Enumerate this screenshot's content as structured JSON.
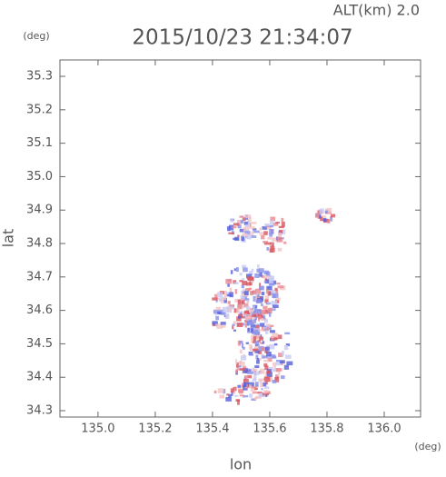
{
  "chart_data": {
    "type": "raster",
    "altitude_label": "ALT(km) 2.0",
    "title": "2015/10/23 21:34:07",
    "y_unit": "(deg)",
    "x_unit": "(deg)",
    "ylabel": "lat",
    "xlabel": "lon",
    "xlim": [
      134.867,
      136.127
    ],
    "ylim": [
      34.281,
      35.349
    ],
    "xticks": [
      {
        "value": 135.0,
        "label": "135.0"
      },
      {
        "value": 135.2,
        "label": "135.2"
      },
      {
        "value": 135.4,
        "label": "135.4"
      },
      {
        "value": 135.6,
        "label": "135.6"
      },
      {
        "value": 135.8,
        "label": "135.8"
      },
      {
        "value": 136.0,
        "label": "136.0"
      }
    ],
    "yticks": [
      {
        "value": 34.3,
        "label": "34.3"
      },
      {
        "value": 34.4,
        "label": "34.4"
      },
      {
        "value": 34.5,
        "label": "34.5"
      },
      {
        "value": 34.6,
        "label": "34.6"
      },
      {
        "value": 34.7,
        "label": "34.7"
      },
      {
        "value": 34.8,
        "label": "34.8"
      },
      {
        "value": 34.9,
        "label": "34.9"
      },
      {
        "value": 35.0,
        "label": "35.0"
      },
      {
        "value": 35.1,
        "label": "35.1"
      },
      {
        "value": 35.2,
        "label": "35.2"
      },
      {
        "value": 35.3,
        "label": "35.3"
      }
    ]
  }
}
